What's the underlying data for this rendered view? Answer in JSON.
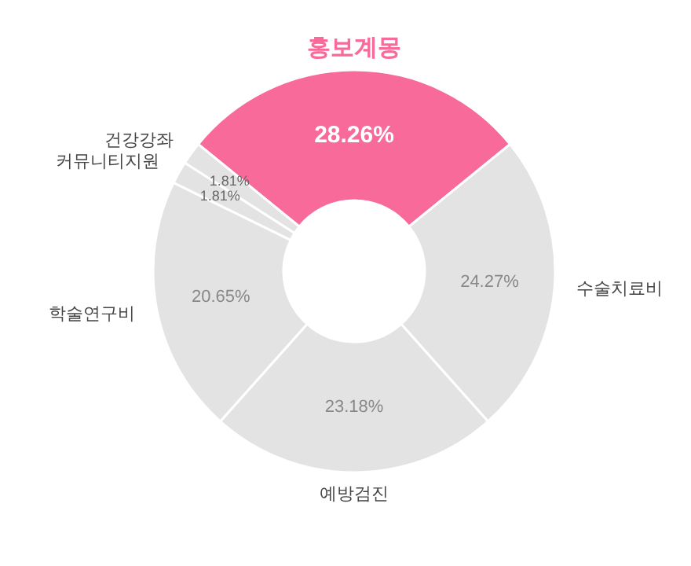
{
  "chart_data": {
    "type": "donut",
    "categories": [
      "홍보계몽",
      "수술치료비",
      "예방검진",
      "학술연구비",
      "커뮤니티지원",
      "건강강좌"
    ],
    "values": [
      28.26,
      24.27,
      23.18,
      20.65,
      1.81,
      1.81
    ],
    "colors": [
      "#f76a9a",
      "#e3e3e3",
      "#e3e3e3",
      "#e3e3e3",
      "#e3e3e3",
      "#e3e3e3"
    ],
    "value_labels": [
      "28.26%",
      "24.27%",
      "23.18%",
      "20.65%",
      "1.81%",
      "1.81%"
    ]
  }
}
